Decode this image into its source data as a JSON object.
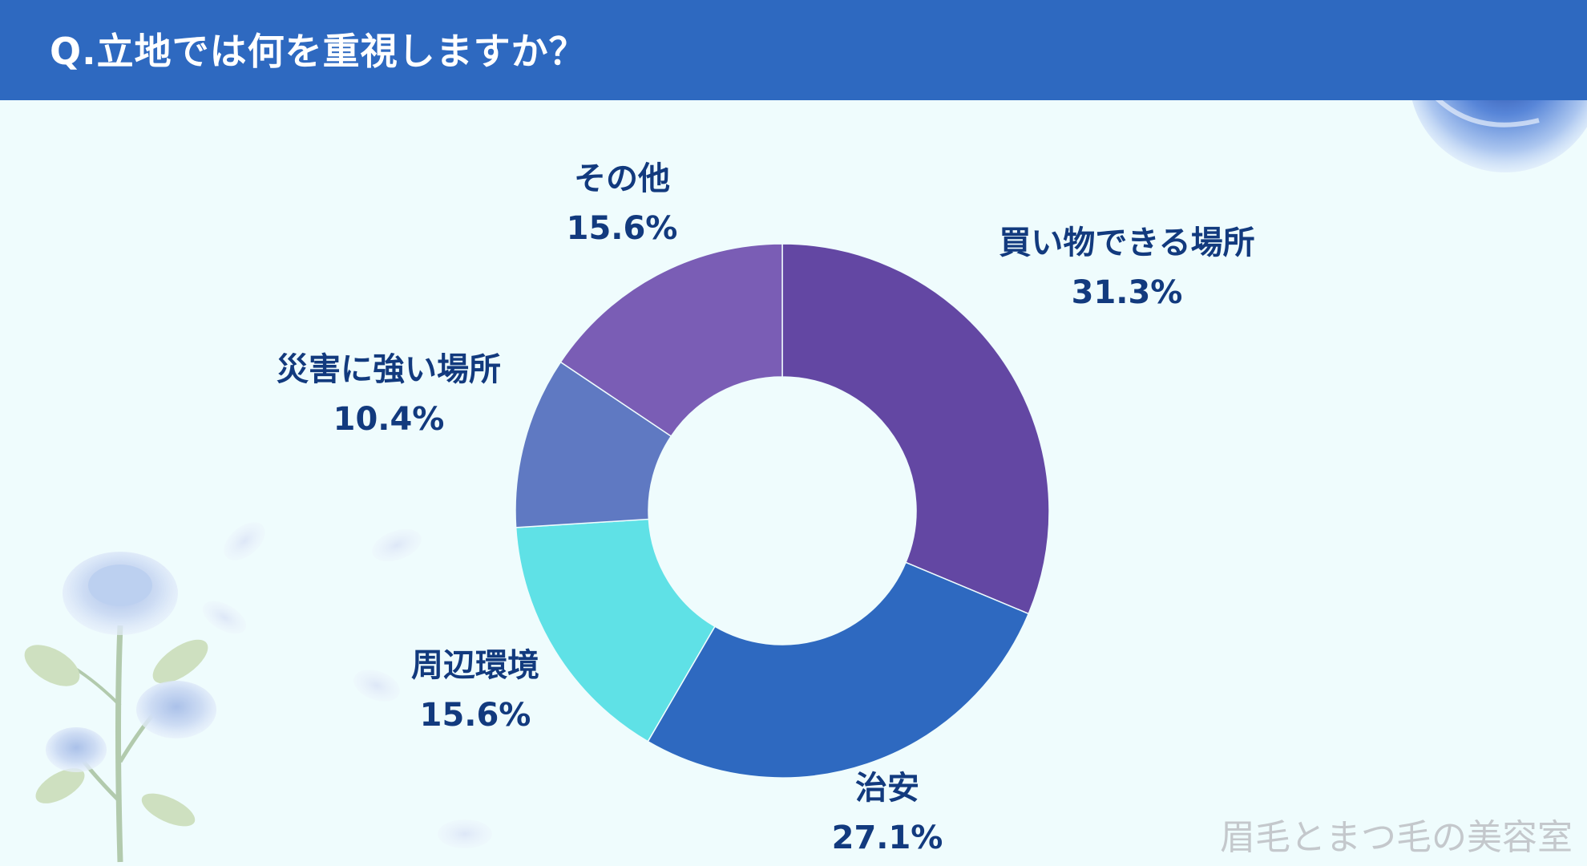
{
  "header": {
    "title": "Q.立地では何を重視しますか？"
  },
  "watermark": "眉毛とまつ毛の美容室",
  "colors": {
    "header_bg": "#2e69c0",
    "background": "#effcfd",
    "label_text": "#123a7e"
  },
  "chart_data": {
    "type": "pie",
    "donut": true,
    "title": "",
    "slices": [
      {
        "label": "買い物できる場所",
        "value": 31.3,
        "value_label": "31.3%",
        "color": "#6347a3"
      },
      {
        "label": "治安",
        "value": 27.1,
        "value_label": "27.1%",
        "color": "#2e69c0"
      },
      {
        "label": "周辺環境",
        "value": 15.6,
        "value_label": "15.6%",
        "color": "#5fe1e6"
      },
      {
        "label": "災害に強い場所",
        "value": 10.4,
        "value_label": "10.4%",
        "color": "#5f79c2"
      },
      {
        "label": "その他",
        "value": 15.6,
        "value_label": "15.6%",
        "color": "#7a5db5"
      }
    ]
  }
}
